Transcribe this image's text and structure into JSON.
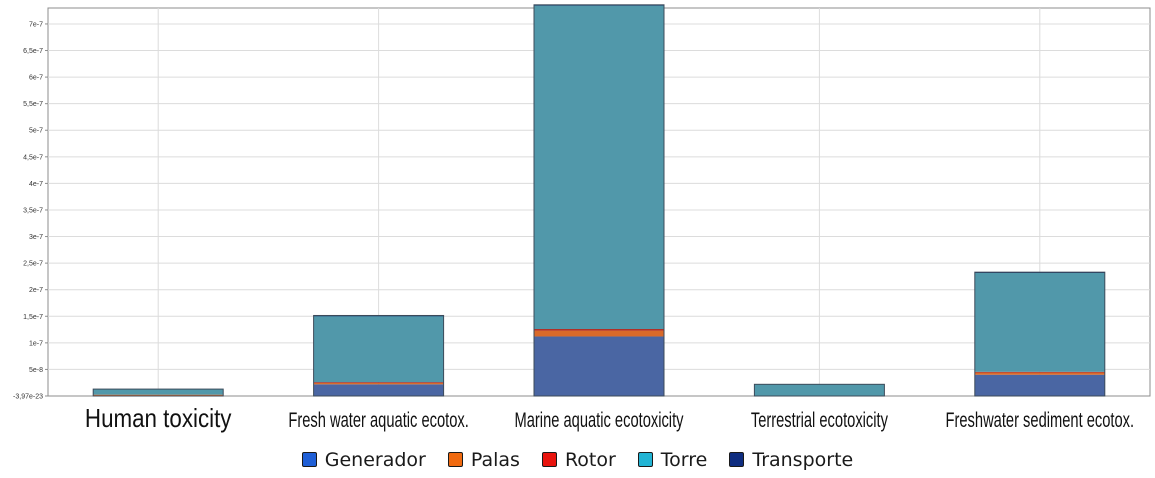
{
  "chart_data": {
    "type": "bar",
    "stacked": true,
    "title": "",
    "xlabel": "",
    "ylabel": "",
    "categories": [
      "Human toxicity",
      "Fresh water aquatic ecotox.",
      "Marine aquatic ecotoxicity",
      "Terrestrial ecotoxicity",
      "Freshwater sediment ecotox."
    ],
    "ylim": [
      -3.97e-23,
      7.3e-07
    ],
    "y_ticks": [
      -3.97e-23,
      5e-08,
      1e-07,
      1.5e-07,
      2e-07,
      2.5e-07,
      3e-07,
      3.5e-07,
      4e-07,
      4.5e-07,
      5e-07,
      5.5e-07,
      6e-07,
      6.5e-07,
      7e-07
    ],
    "y_tick_labels": [
      "-3,97e-23",
      "5e-8",
      "1e-7",
      "1,5e-7",
      "2e-7",
      "2,5e-7",
      "3e-7",
      "3,5e-7",
      "4e-7",
      "4,5e-7",
      "5e-7",
      "5,5e-7",
      "6e-7",
      "6,5e-7",
      "7e-7"
    ],
    "grid": true,
    "legend_position": "bottom",
    "series": [
      {
        "name": "Generador",
        "color": "#4a66a3",
        "values": [
          2e-09,
          2.2e-08,
          1.12e-07,
          0,
          4e-08
        ]
      },
      {
        "name": "Palas",
        "color": "#d96a2a",
        "values": [
          5e-10,
          3e-09,
          1.1e-08,
          0,
          4e-09
        ]
      },
      {
        "name": "Rotor",
        "color": "#b0281e",
        "values": [
          0,
          1e-09,
          3e-09,
          0,
          1.5e-09
        ]
      },
      {
        "name": "Torre",
        "color": "#5198aa",
        "values": [
          1.05e-08,
          1.25e-07,
          6.09e-07,
          2.2e-08,
          1.87e-07
        ]
      },
      {
        "name": "Transporte",
        "color": "#1c3570",
        "values": [
          0,
          5e-10,
          1e-09,
          0,
          5e-10
        ]
      }
    ]
  },
  "legend": {
    "items": [
      {
        "label": "Generador",
        "color": "#1f5fd6"
      },
      {
        "label": "Palas",
        "color": "#f06a10"
      },
      {
        "label": "Rotor",
        "color": "#e8140e"
      },
      {
        "label": "Torre",
        "color": "#22b4d4"
      },
      {
        "label": "Transporte",
        "color": "#0f2d80"
      }
    ]
  }
}
